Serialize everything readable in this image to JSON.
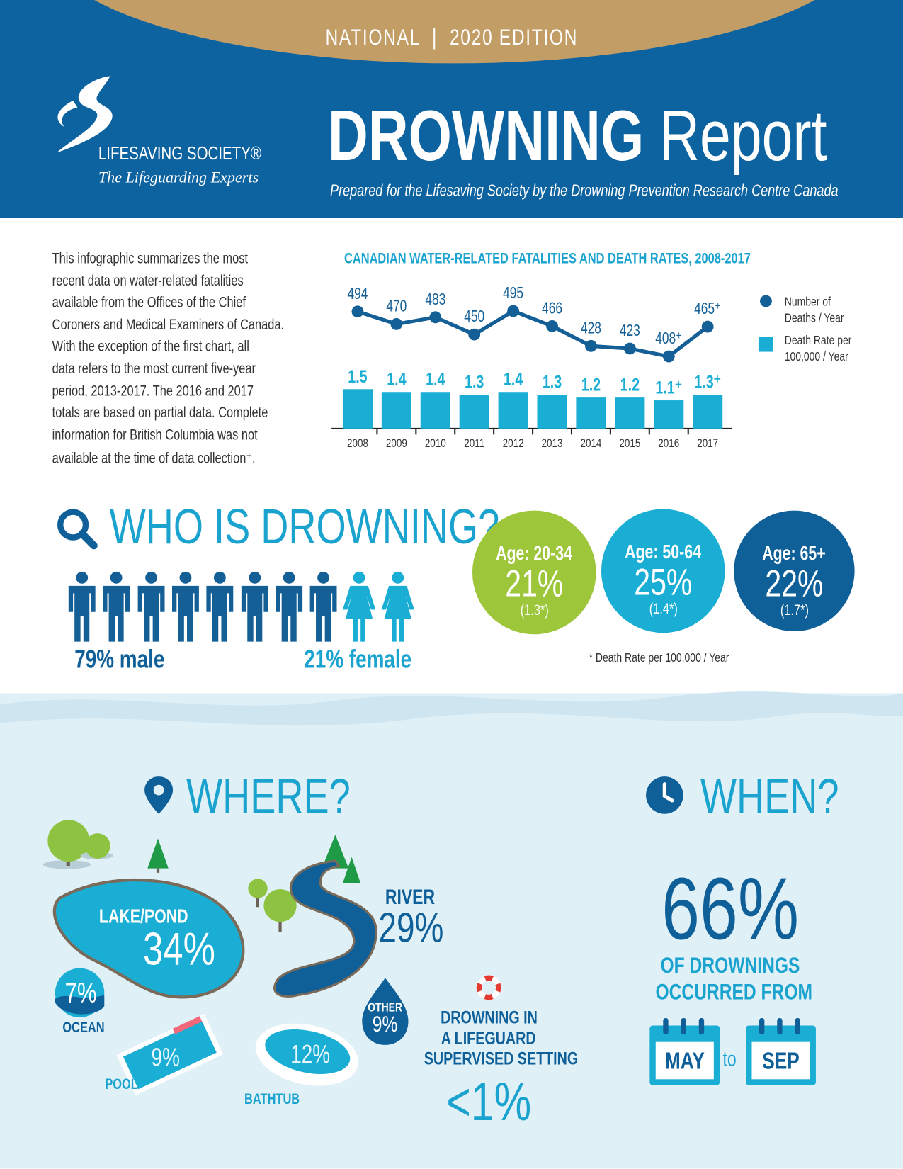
{
  "header": {
    "edition": "NATIONAL  |  2020 EDITION",
    "logo_name": "LIFESAVING SOCIETY®",
    "logo_tagline": "The Lifeguarding Experts",
    "title_bold": "DROWNING",
    "title_light": "Report",
    "subtitle": "Prepared for the Lifesaving Society by the Drowning Prevention Research Centre Canada"
  },
  "intro": {
    "lines": [
      "This infographic summarizes the most",
      "recent data on water-related fatalities",
      "available from the Offices of the Chief",
      "Coroners and Medical Examiners of Canada.",
      "With the exception of the first chart, all",
      "data refers to the most current five-year",
      "period, 2013-2017. The 2016 and 2017",
      "totals are based on partial data. Complete",
      "information for British Columbia was not",
      "available at the time of data collection⁺."
    ]
  },
  "chart_data": {
    "type": "bar+line",
    "title": "CANADIAN WATER-RELATED FATALITIES AND DEATH RATES, 2008-2017",
    "categories": [
      "2008",
      "2009",
      "2010",
      "2011",
      "2012",
      "2013",
      "2014",
      "2015",
      "2016",
      "2017"
    ],
    "series": [
      {
        "name": "Number of Deaths / Year",
        "type": "line",
        "color": "#135f96",
        "values": [
          494,
          470,
          483,
          450,
          495,
          466,
          428,
          423,
          408,
          465
        ],
        "labels": [
          "494",
          "470",
          "483",
          "450",
          "495",
          "466",
          "428",
          "423",
          "408⁺",
          "465⁺"
        ]
      },
      {
        "name": "Death Rate per 100,000 / Year",
        "type": "bar",
        "color": "#1aaed4",
        "values": [
          1.5,
          1.4,
          1.4,
          1.3,
          1.4,
          1.3,
          1.2,
          1.2,
          1.1,
          1.3
        ],
        "labels": [
          "1.5",
          "1.4",
          "1.4",
          "1.3",
          "1.4",
          "1.3",
          "1.2",
          "1.2",
          "1.1⁺",
          "1.3⁺"
        ]
      }
    ],
    "legend": {
      "position": "right",
      "line_label_1": "Number of",
      "line_label_2": "Deaths / Year",
      "bar_label_1": "Death Rate per",
      "bar_label_2": "100,000 / Year"
    },
    "grid": false
  },
  "who": {
    "heading": "WHO IS DROWNING?",
    "male_count": 8,
    "female_count": 2,
    "male_label": "79% male",
    "female_label": "21% female",
    "ages": [
      {
        "label": "Age: 20-34",
        "pct": "21%",
        "rate": "(1.3*)",
        "color": "#9dc63b"
      },
      {
        "label": "Age: 50-64",
        "pct": "25%",
        "rate": "(1.4*)",
        "color": "#1aaed4"
      },
      {
        "label": "Age: 65+",
        "pct": "22%",
        "rate": "(1.7*)",
        "color": "#0f5f98"
      }
    ],
    "footnote": "* Death Rate per 100,000 / Year"
  },
  "where": {
    "heading": "WHERE?",
    "lake_label": "LAKE/POND",
    "lake_pct": "34%",
    "river_label": "RIVER",
    "river_pct": "29%",
    "ocean_label": "OCEAN",
    "ocean_pct": "7%",
    "pool_label": "POOL",
    "pool_pct": "9%",
    "bathtub_label": "BATHTUB",
    "bathtub_pct": "12%",
    "other_label": "OTHER",
    "other_pct": "9%",
    "lifeguard_lines": [
      "DROWNING IN",
      "A LIFEGUARD",
      "SUPERVISED SETTING"
    ],
    "lifeguard_pct": "<1%"
  },
  "when": {
    "heading": "WHEN?",
    "pct": "66%",
    "line1": "OF DROWNINGS",
    "line2": "OCCURRED FROM",
    "from": "MAY",
    "to_word": "to",
    "to": "SEP"
  },
  "colors": {
    "dark_blue": "#0d62a0",
    "cyan": "#1ba3cf",
    "green": "#9dc63b",
    "tan": "#c29d66",
    "light_bg": "#e0f0f7"
  }
}
